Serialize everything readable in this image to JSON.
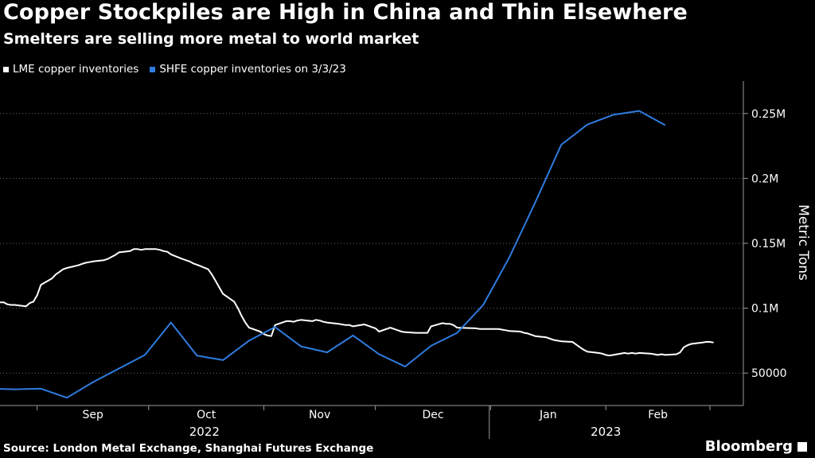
{
  "chart_data": {
    "type": "line",
    "title": "Copper Stockpiles are High in China and Thin Elsewhere",
    "subtitle": "Smelters are selling more metal to world market",
    "ylabel": "Metric Tons",
    "source": "Source: London Metal Exchange, Shanghai Futures Exchange",
    "brand": "Bloomberg",
    "grid": true,
    "legend_placement": "top-left",
    "x_range": [
      "2022-08-22",
      "2023-03-10"
    ],
    "ylim": [
      25000,
      275000
    ],
    "y_ticks": [
      {
        "value": 50000,
        "label": "50000"
      },
      {
        "value": 100000,
        "label": "0.1M"
      },
      {
        "value": 150000,
        "label": "0.15M"
      },
      {
        "value": 200000,
        "label": "0.2M"
      },
      {
        "value": 250000,
        "label": "0.25M"
      }
    ],
    "month_ticks": [
      {
        "label": "Sep",
        "date": "2022-09-01"
      },
      {
        "label": "Oct",
        "date": "2022-10-01"
      },
      {
        "label": "Nov",
        "date": "2022-11-01"
      },
      {
        "label": "Dec",
        "date": "2022-12-01"
      },
      {
        "label": "Jan",
        "date": "2023-01-01"
      },
      {
        "label": "Feb",
        "date": "2023-02-01"
      }
    ],
    "year_labels": [
      {
        "label": "2022",
        "date": "2022-10-16"
      },
      {
        "label": "2023",
        "date": "2023-02-01"
      }
    ],
    "year_divider": "2022-12-31",
    "series": [
      {
        "name": "LME copper inventories",
        "color": "#ffffff",
        "points": [
          [
            "2022-08-22",
            104500
          ],
          [
            "2022-08-23",
            104500
          ],
          [
            "2022-08-24",
            103000
          ],
          [
            "2022-08-25",
            102500
          ],
          [
            "2022-08-26",
            102500
          ],
          [
            "2022-08-29",
            101500
          ],
          [
            "2022-08-30",
            104000
          ],
          [
            "2022-08-31",
            105000
          ],
          [
            "2022-09-01",
            110000
          ],
          [
            "2022-09-02",
            118000
          ],
          [
            "2022-09-05",
            123000
          ],
          [
            "2022-09-06",
            126000
          ],
          [
            "2022-09-07",
            128000
          ],
          [
            "2022-09-08",
            130000
          ],
          [
            "2022-09-09",
            131000
          ],
          [
            "2022-09-12",
            133000
          ],
          [
            "2022-09-13",
            134000
          ],
          [
            "2022-09-14",
            135000
          ],
          [
            "2022-09-15",
            135500
          ],
          [
            "2022-09-16",
            136000
          ],
          [
            "2022-09-19",
            137000
          ],
          [
            "2022-09-20",
            138000
          ],
          [
            "2022-09-21",
            139500
          ],
          [
            "2022-09-22",
            141000
          ],
          [
            "2022-09-23",
            143000
          ],
          [
            "2022-09-26",
            144000
          ],
          [
            "2022-09-27",
            145500
          ],
          [
            "2022-09-28",
            145500
          ],
          [
            "2022-09-29",
            145000
          ],
          [
            "2022-09-30",
            145500
          ],
          [
            "2022-10-03",
            145500
          ],
          [
            "2022-10-04",
            145000
          ],
          [
            "2022-10-05",
            144000
          ],
          [
            "2022-10-06",
            143500
          ],
          [
            "2022-10-07",
            141500
          ],
          [
            "2022-10-10",
            138000
          ],
          [
            "2022-10-11",
            137000
          ],
          [
            "2022-10-12",
            136000
          ],
          [
            "2022-10-13",
            134500
          ],
          [
            "2022-10-14",
            133500
          ],
          [
            "2022-10-17",
            130000
          ],
          [
            "2022-10-18",
            126000
          ],
          [
            "2022-10-19",
            121000
          ],
          [
            "2022-10-20",
            116000
          ],
          [
            "2022-10-21",
            111000
          ],
          [
            "2022-10-24",
            105000
          ],
          [
            "2022-10-25",
            100000
          ],
          [
            "2022-10-26",
            94000
          ],
          [
            "2022-10-27",
            89000
          ],
          [
            "2022-10-28",
            85000
          ],
          [
            "2022-10-31",
            82000
          ],
          [
            "2022-11-01",
            80000
          ],
          [
            "2022-11-02",
            79000
          ],
          [
            "2022-11-03",
            78500
          ],
          [
            "2022-11-04",
            87000
          ],
          [
            "2022-11-07",
            90000
          ],
          [
            "2022-11-08",
            90000
          ],
          [
            "2022-11-09",
            89500
          ],
          [
            "2022-11-10",
            90500
          ],
          [
            "2022-11-11",
            91000
          ],
          [
            "2022-11-14",
            90000
          ],
          [
            "2022-11-15",
            91000
          ],
          [
            "2022-11-16",
            90500
          ],
          [
            "2022-11-17",
            89500
          ],
          [
            "2022-11-18",
            89000
          ],
          [
            "2022-11-21",
            88000
          ],
          [
            "2022-11-22",
            87500
          ],
          [
            "2022-11-23",
            87000
          ],
          [
            "2022-11-24",
            87000
          ],
          [
            "2022-11-25",
            86000
          ],
          [
            "2022-11-28",
            87500
          ],
          [
            "2022-11-29",
            86500
          ],
          [
            "2022-11-30",
            85500
          ],
          [
            "2022-12-01",
            84500
          ],
          [
            "2022-12-02",
            82000
          ],
          [
            "2022-12-05",
            85000
          ],
          [
            "2022-12-06",
            84000
          ],
          [
            "2022-12-07",
            83000
          ],
          [
            "2022-12-08",
            82000
          ],
          [
            "2022-12-09",
            81500
          ],
          [
            "2022-12-12",
            81000
          ],
          [
            "2022-12-13",
            81000
          ],
          [
            "2022-12-14",
            81000
          ],
          [
            "2022-12-15",
            81000
          ],
          [
            "2022-12-16",
            86000
          ],
          [
            "2022-12-19",
            88500
          ],
          [
            "2022-12-20",
            88000
          ],
          [
            "2022-12-21",
            88000
          ],
          [
            "2022-12-22",
            87000
          ],
          [
            "2022-12-23",
            85000
          ],
          [
            "2022-12-28",
            84500
          ],
          [
            "2022-12-29",
            84000
          ],
          [
            "2022-12-30",
            84000
          ],
          [
            "2023-01-03",
            84000
          ],
          [
            "2023-01-04",
            83500
          ],
          [
            "2023-01-05",
            83000
          ],
          [
            "2023-01-06",
            82500
          ],
          [
            "2023-01-09",
            82000
          ],
          [
            "2023-01-10",
            81000
          ],
          [
            "2023-01-11",
            80500
          ],
          [
            "2023-01-12",
            79500
          ],
          [
            "2023-01-13",
            78500
          ],
          [
            "2023-01-16",
            77500
          ],
          [
            "2023-01-17",
            76500
          ],
          [
            "2023-01-18",
            75500
          ],
          [
            "2023-01-19",
            75000
          ],
          [
            "2023-01-20",
            74500
          ],
          [
            "2023-01-23",
            74000
          ],
          [
            "2023-01-24",
            72000
          ],
          [
            "2023-01-25",
            70000
          ],
          [
            "2023-01-26",
            68000
          ],
          [
            "2023-01-27",
            66500
          ],
          [
            "2023-01-30",
            65500
          ],
          [
            "2023-01-31",
            65000
          ],
          [
            "2023-02-01",
            64000
          ],
          [
            "2023-02-02",
            63500
          ],
          [
            "2023-02-03",
            64000
          ],
          [
            "2023-02-06",
            65500
          ],
          [
            "2023-02-07",
            65000
          ],
          [
            "2023-02-08",
            65500
          ],
          [
            "2023-02-09",
            65000
          ],
          [
            "2023-02-10",
            65500
          ],
          [
            "2023-02-13",
            65000
          ],
          [
            "2023-02-14",
            64500
          ],
          [
            "2023-02-15",
            64000
          ],
          [
            "2023-02-16",
            64500
          ],
          [
            "2023-02-17",
            64000
          ],
          [
            "2023-02-20",
            64500
          ],
          [
            "2023-02-21",
            66000
          ],
          [
            "2023-02-22",
            70000
          ],
          [
            "2023-02-23",
            71500
          ],
          [
            "2023-02-24",
            72500
          ],
          [
            "2023-02-27",
            73500
          ],
          [
            "2023-02-28",
            74000
          ],
          [
            "2023-03-01",
            74000
          ],
          [
            "2023-03-02",
            73500
          ]
        ]
      },
      {
        "name": "SHFE copper inventories on 3/3/23",
        "color": "#2f7ce0",
        "points": [
          [
            "2022-08-19",
            38000
          ],
          [
            "2022-08-26",
            37500
          ],
          [
            "2022-09-02",
            38000
          ],
          [
            "2022-09-09",
            31000
          ],
          [
            "2022-09-16",
            43000
          ],
          [
            "2022-09-23",
            53500
          ],
          [
            "2022-09-30",
            64000
          ],
          [
            "2022-10-07",
            89000
          ],
          [
            "2022-10-14",
            63500
          ],
          [
            "2022-10-21",
            60000
          ],
          [
            "2022-10-28",
            75000
          ],
          [
            "2022-11-04",
            85500
          ],
          [
            "2022-11-11",
            70500
          ],
          [
            "2022-11-18",
            66000
          ],
          [
            "2022-11-25",
            79000
          ],
          [
            "2022-12-02",
            64500
          ],
          [
            "2022-12-09",
            55000
          ],
          [
            "2022-12-16",
            71000
          ],
          [
            "2022-12-23",
            81000
          ],
          [
            "2022-12-30",
            102500
          ],
          [
            "2023-01-06",
            139000
          ],
          [
            "2023-01-13",
            181500
          ],
          [
            "2023-01-20",
            226000
          ],
          [
            "2023-01-27",
            241500
          ],
          [
            "2023-02-03",
            249000
          ],
          [
            "2023-02-10",
            252000
          ],
          [
            "2023-02-17",
            241000
          ]
        ]
      }
    ]
  }
}
